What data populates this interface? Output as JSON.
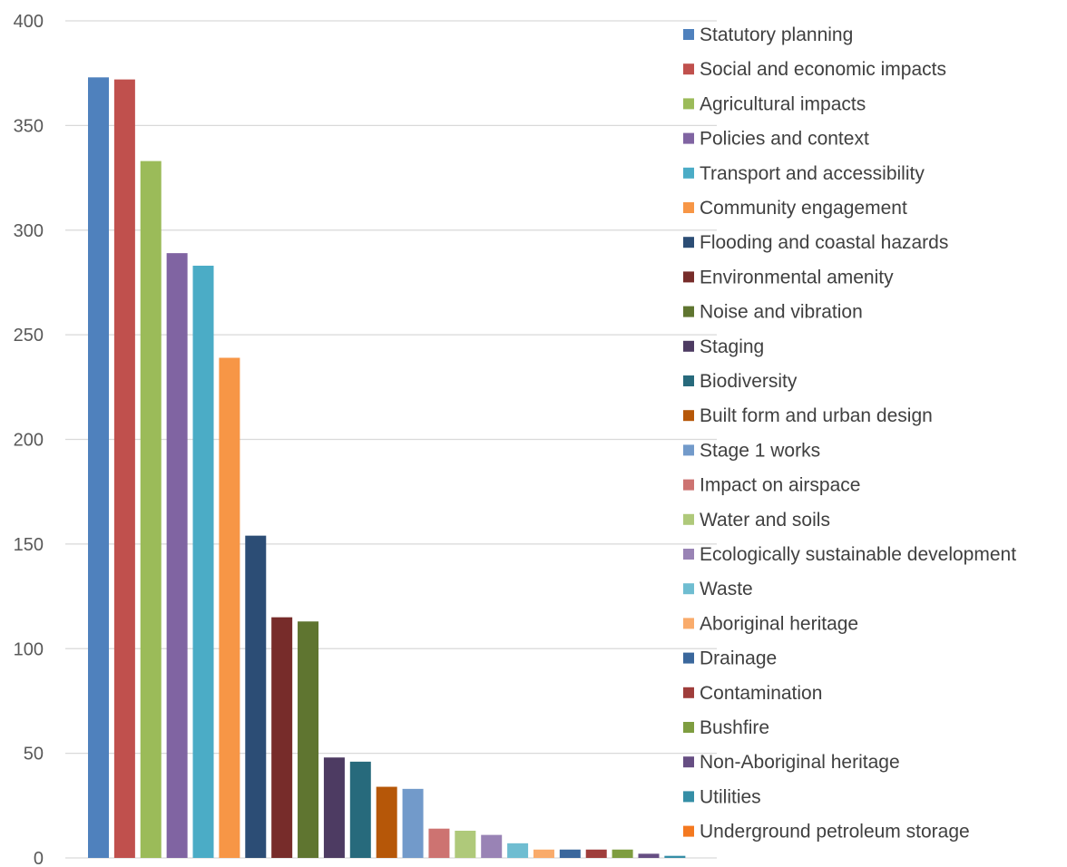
{
  "chart_data": {
    "type": "bar",
    "title": "",
    "xlabel": "",
    "ylabel": "",
    "ylim": [
      0,
      400
    ],
    "yticks": [
      0,
      50,
      100,
      150,
      200,
      250,
      300,
      350,
      400
    ],
    "grid": true,
    "legend_position": "right",
    "series": [
      {
        "name": "Statutory planning",
        "value": 373,
        "color": "#4F81BD"
      },
      {
        "name": "Social and economic impacts",
        "value": 372,
        "color": "#C0504D"
      },
      {
        "name": "Agricultural impacts",
        "value": 333,
        "color": "#9BBB59"
      },
      {
        "name": "Policies and context",
        "value": 289,
        "color": "#8064A2"
      },
      {
        "name": "Transport and accessibility",
        "value": 283,
        "color": "#4BACC6"
      },
      {
        "name": "Community engagement",
        "value": 239,
        "color": "#F79646"
      },
      {
        "name": "Flooding and coastal hazards",
        "value": 154,
        "color": "#2C4D75"
      },
      {
        "name": "Environmental amenity",
        "value": 115,
        "color": "#772C2A"
      },
      {
        "name": "Noise and vibration",
        "value": 113,
        "color": "#5F7530"
      },
      {
        "name": "Staging",
        "value": 48,
        "color": "#4D3B62"
      },
      {
        "name": "Biodiversity",
        "value": 46,
        "color": "#276A7C"
      },
      {
        "name": "Built form and urban design",
        "value": 34,
        "color": "#B65708"
      },
      {
        "name": "Stage 1 works",
        "value": 33,
        "color": "#729ACA"
      },
      {
        "name": "Impact on airspace",
        "value": 14,
        "color": "#CD7371"
      },
      {
        "name": "Water and soils",
        "value": 13,
        "color": "#AFC97A"
      },
      {
        "name": "Ecologically sustainable development",
        "value": 11,
        "color": "#9983B5"
      },
      {
        "name": "Waste",
        "value": 7,
        "color": "#6FBDD1"
      },
      {
        "name": "Aboriginal heritage",
        "value": 4,
        "color": "#F9AB6B"
      },
      {
        "name": "Drainage",
        "value": 4,
        "color": "#3A679C"
      },
      {
        "name": "Contamination",
        "value": 4,
        "color": "#9F3D3B"
      },
      {
        "name": "Bushfire",
        "value": 4,
        "color": "#7E9D40"
      },
      {
        "name": "Non-Aboriginal heritage",
        "value": 2,
        "color": "#664E83"
      },
      {
        "name": "Utilities",
        "value": 1,
        "color": "#358EA6"
      },
      {
        "name": "Underground petroleum storage",
        "value": 0,
        "color": "#F47920"
      }
    ]
  }
}
